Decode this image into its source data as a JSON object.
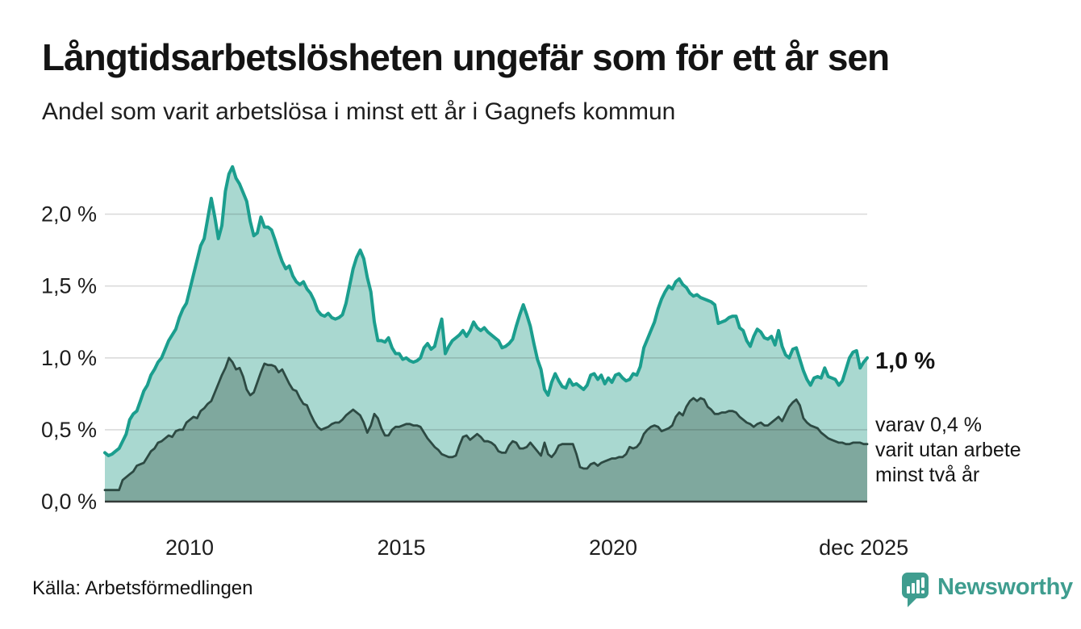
{
  "header": {
    "title": "Långtidsarbetslösheten ungefär som för ett år sen",
    "subtitle": "Andel som varit arbetslösa i minst ett år i Gagnefs kommun"
  },
  "annotations": {
    "end_value_label": "1,0 %",
    "secondary_lines": [
      "varav 0,4 %",
      "varit utan arbete",
      "minst två år"
    ]
  },
  "footer": {
    "source": "Källa: Arbetsförmedlingen",
    "brand": "Newsworthy",
    "brand_icon": "bar-chart-speech-bubble-icon"
  },
  "colors": {
    "series1_line": "#1b9e8e",
    "series1_fill": "#a9d8d0",
    "series2_line": "#2d4a43",
    "series2_fill": "#7fa89e",
    "grid": "rgba(0,0,0,0.14)",
    "axis": "#333b39",
    "text": "#1e1e1e",
    "brand": "#3f9d8f"
  },
  "chart_data": {
    "type": "area",
    "title": "Långtidsarbetslösheten ungefär som för ett år sen",
    "subtitle": "Andel som varit arbetslösa i minst ett år i Gagnefs kommun",
    "unit": "%",
    "x_interval": "monthly",
    "x_start_year": 2008.0,
    "x_end_year": 2025.9167,
    "ylim": [
      0,
      2.45
    ],
    "grid": true,
    "legend_position": "none",
    "x_ticks": [
      {
        "label": "2010",
        "year": 2010
      },
      {
        "label": "2015",
        "year": 2015
      },
      {
        "label": "2020",
        "year": 2020
      },
      {
        "label": "dec 2025",
        "year": 2025.9167
      }
    ],
    "y_ticks": [
      {
        "label": "0,0 %",
        "value": 0
      },
      {
        "label": "0,5 %",
        "value": 0.5
      },
      {
        "label": "1,0 %",
        "value": 1
      },
      {
        "label": "1,5 %",
        "value": 1.5
      },
      {
        "label": "2,0 %",
        "value": 2
      }
    ],
    "series": [
      {
        "name": "Andel som varit arbetslösa i minst ett år",
        "end_value": 1.0,
        "end_label": "1,0 %",
        "values": [
          0.34,
          0.32,
          0.33,
          0.35,
          0.37,
          0.42,
          0.47,
          0.57,
          0.61,
          0.63,
          0.7,
          0.77,
          0.81,
          0.88,
          0.92,
          0.97,
          1.0,
          1.06,
          1.12,
          1.16,
          1.2,
          1.28,
          1.34,
          1.38,
          1.48,
          1.58,
          1.68,
          1.78,
          1.83,
          1.97,
          2.11,
          1.98,
          1.83,
          1.92,
          2.16,
          2.28,
          2.33,
          2.25,
          2.21,
          2.15,
          2.09,
          1.95,
          1.85,
          1.87,
          1.98,
          1.91,
          1.91,
          1.89,
          1.82,
          1.74,
          1.67,
          1.62,
          1.64,
          1.57,
          1.53,
          1.51,
          1.53,
          1.48,
          1.45,
          1.4,
          1.33,
          1.3,
          1.29,
          1.31,
          1.28,
          1.27,
          1.28,
          1.3,
          1.38,
          1.5,
          1.62,
          1.7,
          1.75,
          1.69,
          1.56,
          1.46,
          1.25,
          1.12,
          1.12,
          1.11,
          1.14,
          1.07,
          1.03,
          1.03,
          0.99,
          1.0,
          0.98,
          0.97,
          0.98,
          1.0,
          1.07,
          1.1,
          1.06,
          1.08,
          1.18,
          1.27,
          1.03,
          1.08,
          1.12,
          1.14,
          1.16,
          1.19,
          1.15,
          1.19,
          1.25,
          1.21,
          1.19,
          1.21,
          1.18,
          1.16,
          1.14,
          1.12,
          1.07,
          1.08,
          1.1,
          1.13,
          1.22,
          1.3,
          1.37,
          1.3,
          1.22,
          1.1,
          0.99,
          0.92,
          0.78,
          0.74,
          0.83,
          0.89,
          0.84,
          0.8,
          0.79,
          0.85,
          0.81,
          0.82,
          0.8,
          0.78,
          0.81,
          0.88,
          0.89,
          0.85,
          0.88,
          0.82,
          0.86,
          0.83,
          0.88,
          0.89,
          0.86,
          0.84,
          0.85,
          0.89,
          0.88,
          0.94,
          1.07,
          1.13,
          1.19,
          1.25,
          1.34,
          1.41,
          1.46,
          1.5,
          1.48,
          1.53,
          1.55,
          1.51,
          1.49,
          1.45,
          1.43,
          1.44,
          1.42,
          1.41,
          1.4,
          1.39,
          1.37,
          1.24,
          1.25,
          1.26,
          1.28,
          1.29,
          1.29,
          1.21,
          1.19,
          1.12,
          1.08,
          1.15,
          1.2,
          1.18,
          1.14,
          1.13,
          1.15,
          1.09,
          1.19,
          1.08,
          1.02,
          1.0,
          1.06,
          1.07,
          0.99,
          0.91,
          0.85,
          0.81,
          0.86,
          0.87,
          0.86,
          0.93,
          0.87,
          0.86,
          0.85,
          0.81,
          0.84,
          0.92,
          1.0,
          1.04,
          1.05,
          0.93,
          0.97,
          1.0
        ]
      },
      {
        "name": "Andel som varit utan arbete i minst två år",
        "end_value": 0.4,
        "end_label": "varav 0,4 % varit utan arbete minst två år",
        "values": [
          0.08,
          0.08,
          0.08,
          0.08,
          0.08,
          0.15,
          0.17,
          0.19,
          0.21,
          0.25,
          0.26,
          0.27,
          0.31,
          0.35,
          0.37,
          0.41,
          0.42,
          0.44,
          0.46,
          0.45,
          0.49,
          0.5,
          0.5,
          0.55,
          0.57,
          0.59,
          0.58,
          0.63,
          0.65,
          0.68,
          0.7,
          0.76,
          0.82,
          0.88,
          0.93,
          1.0,
          0.97,
          0.92,
          0.93,
          0.87,
          0.78,
          0.74,
          0.76,
          0.83,
          0.9,
          0.96,
          0.95,
          0.95,
          0.94,
          0.9,
          0.92,
          0.87,
          0.82,
          0.78,
          0.77,
          0.72,
          0.68,
          0.67,
          0.61,
          0.56,
          0.52,
          0.5,
          0.51,
          0.52,
          0.54,
          0.55,
          0.55,
          0.57,
          0.6,
          0.62,
          0.64,
          0.62,
          0.6,
          0.55,
          0.48,
          0.53,
          0.61,
          0.58,
          0.51,
          0.46,
          0.46,
          0.5,
          0.52,
          0.52,
          0.53,
          0.54,
          0.54,
          0.53,
          0.53,
          0.52,
          0.48,
          0.44,
          0.41,
          0.38,
          0.36,
          0.33,
          0.32,
          0.31,
          0.31,
          0.32,
          0.39,
          0.45,
          0.46,
          0.43,
          0.45,
          0.47,
          0.45,
          0.42,
          0.42,
          0.41,
          0.39,
          0.35,
          0.34,
          0.34,
          0.39,
          0.42,
          0.41,
          0.37,
          0.37,
          0.38,
          0.41,
          0.38,
          0.35,
          0.32,
          0.41,
          0.33,
          0.31,
          0.34,
          0.39,
          0.4,
          0.4,
          0.4,
          0.4,
          0.33,
          0.24,
          0.23,
          0.23,
          0.26,
          0.27,
          0.25,
          0.27,
          0.28,
          0.29,
          0.3,
          0.3,
          0.31,
          0.31,
          0.33,
          0.38,
          0.37,
          0.38,
          0.41,
          0.47,
          0.5,
          0.52,
          0.53,
          0.52,
          0.49,
          0.5,
          0.51,
          0.53,
          0.59,
          0.62,
          0.6,
          0.66,
          0.7,
          0.72,
          0.7,
          0.72,
          0.71,
          0.66,
          0.64,
          0.61,
          0.61,
          0.62,
          0.62,
          0.63,
          0.63,
          0.62,
          0.59,
          0.57,
          0.55,
          0.54,
          0.52,
          0.54,
          0.55,
          0.53,
          0.53,
          0.55,
          0.57,
          0.59,
          0.56,
          0.61,
          0.66,
          0.69,
          0.71,
          0.67,
          0.58,
          0.55,
          0.53,
          0.52,
          0.51,
          0.48,
          0.46,
          0.44,
          0.43,
          0.42,
          0.41,
          0.41,
          0.4,
          0.4,
          0.41,
          0.41,
          0.41,
          0.4,
          0.4
        ]
      }
    ]
  }
}
